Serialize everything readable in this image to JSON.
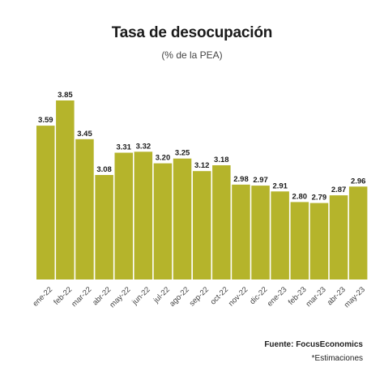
{
  "chart_data": {
    "type": "bar",
    "title": "Tasa de desocupación",
    "subtitle": "(% de la PEA)",
    "categories": [
      "ene-22",
      "feb-22",
      "mar-22",
      "abr-22",
      "may-22",
      "jun-22",
      "jul-22",
      "ago-22",
      "sep-22",
      "oct-22",
      "nov-22",
      "dic-22",
      "ene-23",
      "feb-23",
      "mar-23",
      "abr-23",
      "may-23"
    ],
    "values": [
      3.59,
      3.85,
      3.45,
      3.08,
      3.31,
      3.32,
      3.2,
      3.25,
      3.12,
      3.18,
      2.98,
      2.97,
      2.91,
      2.8,
      2.79,
      2.87,
      2.96
    ],
    "labels": [
      "3.59",
      "3.85",
      "3.45",
      "3.08",
      "3.31",
      "3.32",
      "3.20",
      "3.25",
      "3.12",
      "3.18",
      "2.98",
      "2.97",
      "2.91",
      "2.80",
      "2.79",
      "2.87",
      "2.96"
    ],
    "ylim": [
      2.0,
      3.85
    ],
    "bar_color": "#b5b42b",
    "grid": false,
    "legend": "none"
  },
  "footer": {
    "source": "Fuente: FocusEconomics",
    "note": "*Estimaciones"
  }
}
